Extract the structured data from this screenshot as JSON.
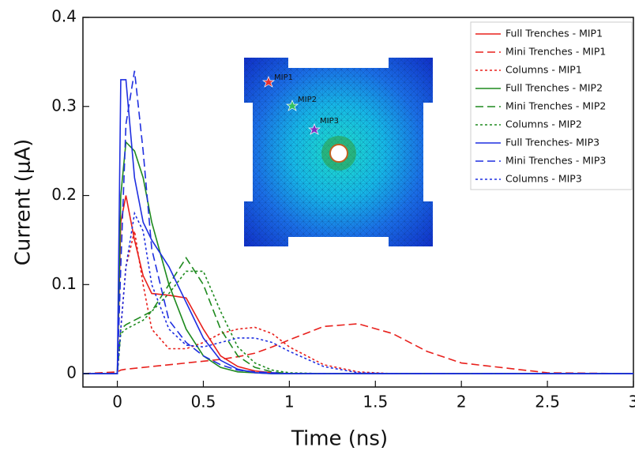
{
  "chart_data": {
    "type": "line",
    "xlabel": "Time (ns)",
    "ylabel": "Current (μA)",
    "x": [
      -0.2,
      0,
      0.02,
      0.05,
      0.1,
      0.15,
      0.2,
      0.3,
      0.4,
      0.5,
      0.6,
      0.7,
      0.8,
      0.9,
      1.0,
      1.2,
      1.4,
      1.6,
      1.8,
      2.0,
      2.5,
      3.0
    ],
    "series": [
      {
        "name": "Full Trenches - MIP1",
        "color": "#e8201c",
        "dash": "solid",
        "values": [
          0,
          0,
          0.17,
          0.2,
          0.15,
          0.11,
          0.09,
          0.088,
          0.085,
          0.05,
          0.02,
          0.008,
          0.003,
          0.001,
          0,
          0,
          0,
          0,
          0,
          0,
          0,
          0
        ]
      },
      {
        "name": "Mini Trenches - MIP1",
        "color": "#e8201c",
        "dash": "dashed",
        "values": [
          0,
          0.002,
          0.004,
          0.005,
          0.006,
          0.007,
          0.008,
          0.01,
          0.012,
          0.014,
          0.016,
          0.019,
          0.023,
          0.03,
          0.038,
          0.053,
          0.056,
          0.045,
          0.025,
          0.012,
          0.001,
          0
        ]
      },
      {
        "name": "Columns - MIP1",
        "color": "#e8201c",
        "dash": "dotted",
        "values": [
          0,
          0,
          0.05,
          0.12,
          0.16,
          0.1,
          0.05,
          0.028,
          0.028,
          0.035,
          0.045,
          0.05,
          0.052,
          0.045,
          0.03,
          0.01,
          0.002,
          0,
          0,
          0,
          0,
          0
        ]
      },
      {
        "name": "Full Trenches - MIP2",
        "color": "#1e8a1e",
        "dash": "solid",
        "values": [
          0,
          0,
          0.2,
          0.26,
          0.25,
          0.22,
          0.17,
          0.1,
          0.05,
          0.02,
          0.007,
          0.002,
          0.001,
          0,
          0,
          0,
          0,
          0,
          0,
          0,
          0,
          0
        ]
      },
      {
        "name": "Mini Trenches - MIP2",
        "color": "#1e8a1e",
        "dash": "dashed",
        "values": [
          0,
          0,
          0.05,
          0.055,
          0.06,
          0.065,
          0.07,
          0.1,
          0.13,
          0.1,
          0.05,
          0.02,
          0.007,
          0.002,
          0,
          0,
          0,
          0,
          0,
          0,
          0,
          0
        ]
      },
      {
        "name": "Columns - MIP2",
        "color": "#1e8a1e",
        "dash": "dotted",
        "values": [
          0,
          0,
          0.045,
          0.05,
          0.055,
          0.06,
          0.07,
          0.09,
          0.115,
          0.115,
          0.07,
          0.03,
          0.012,
          0.004,
          0.001,
          0,
          0,
          0,
          0,
          0,
          0,
          0
        ]
      },
      {
        "name": "Full Trenches- MIP3",
        "color": "#1f2fe0",
        "dash": "solid",
        "values": [
          0,
          0,
          0.33,
          0.33,
          0.22,
          0.17,
          0.15,
          0.12,
          0.08,
          0.04,
          0.015,
          0.005,
          0.001,
          0,
          0,
          0,
          0,
          0,
          0,
          0,
          0,
          0
        ]
      },
      {
        "name": "Mini Trenches - MIP3",
        "color": "#1f2fe0",
        "dash": "dashed",
        "values": [
          0,
          0,
          0.12,
          0.28,
          0.34,
          0.25,
          0.14,
          0.06,
          0.035,
          0.02,
          0.01,
          0.004,
          0.002,
          0.001,
          0,
          0,
          0,
          0,
          0,
          0,
          0,
          0
        ]
      },
      {
        "name": "Columns - MIP3",
        "color": "#1f2fe0",
        "dash": "dotted",
        "values": [
          0,
          0,
          0.05,
          0.12,
          0.18,
          0.16,
          0.1,
          0.05,
          0.032,
          0.03,
          0.035,
          0.04,
          0.04,
          0.035,
          0.025,
          0.008,
          0.001,
          0,
          0,
          0,
          0,
          0
        ]
      }
    ],
    "xlim": [
      -0.2,
      3
    ],
    "ylim": [
      -0.015,
      0.4
    ],
    "xticks": [
      0,
      0.5,
      1,
      1.5,
      2,
      2.5,
      3
    ],
    "yticks": [
      0,
      0.1,
      0.2,
      0.3,
      0.4
    ],
    "legend": "upper right",
    "inset": {
      "labels": [
        "MIP1",
        "MIP2",
        "MIP3"
      ]
    }
  }
}
